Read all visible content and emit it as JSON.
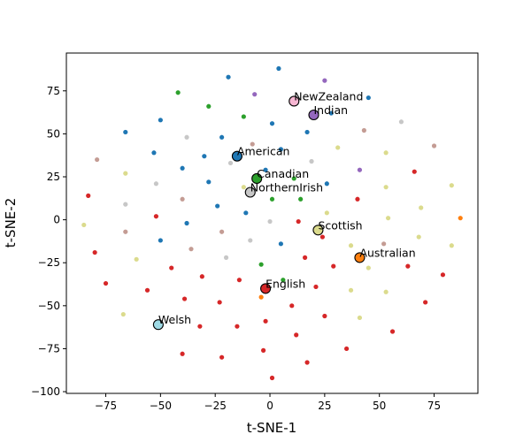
{
  "chart_data": {
    "type": "scatter",
    "xlabel": "t-SNE-1",
    "ylabel": "t-SNE-2",
    "xlim": [
      -93,
      95
    ],
    "ylim": [
      -101,
      97
    ],
    "xticks": [
      -75,
      -50,
      -25,
      0,
      25,
      50,
      75
    ],
    "yticks": [
      -100,
      -75,
      -50,
      -25,
      0,
      25,
      50,
      75
    ],
    "xtick_labels": [
      "−75",
      "−50",
      "−25",
      "0",
      "25",
      "50",
      "75"
    ],
    "ytick_labels": [
      "−100",
      "−75",
      "−50",
      "−25",
      "0",
      "25",
      "50",
      "75"
    ],
    "grid": false,
    "colors": {
      "blue": "#1f77b4",
      "orange": "#ff7f0e",
      "green": "#2ca02c",
      "red": "#d62728",
      "purple": "#9467bd",
      "brown": "#c49c94",
      "gray": "#c7c7c7",
      "olive": "#dbdb8d",
      "light_blue": "#9edae5",
      "pink": "#f7b6d2",
      "dark_orange": "#ff7f0e",
      "dark_purple": "#9467bd"
    },
    "points": [
      {
        "x": 4,
        "y": 88,
        "c": "blue"
      },
      {
        "x": -19,
        "y": 83,
        "c": "blue"
      },
      {
        "x": 25,
        "y": 81,
        "c": "purple"
      },
      {
        "x": -42,
        "y": 74,
        "c": "green"
      },
      {
        "x": -7,
        "y": 73,
        "c": "purple"
      },
      {
        "x": 45,
        "y": 71,
        "c": "blue"
      },
      {
        "x": -28,
        "y": 66,
        "c": "green"
      },
      {
        "x": -12,
        "y": 60,
        "c": "green"
      },
      {
        "x": 28,
        "y": 62,
        "c": "blue"
      },
      {
        "x": -50,
        "y": 58,
        "c": "blue"
      },
      {
        "x": 1,
        "y": 56,
        "c": "blue"
      },
      {
        "x": 60,
        "y": 57,
        "c": "gray"
      },
      {
        "x": -66,
        "y": 51,
        "c": "blue"
      },
      {
        "x": 17,
        "y": 51,
        "c": "blue"
      },
      {
        "x": 43,
        "y": 52,
        "c": "brown"
      },
      {
        "x": -38,
        "y": 48,
        "c": "gray"
      },
      {
        "x": -22,
        "y": 48,
        "c": "blue"
      },
      {
        "x": -8,
        "y": 44,
        "c": "brown"
      },
      {
        "x": 5,
        "y": 41,
        "c": "blue"
      },
      {
        "x": 31,
        "y": 42,
        "c": "olive"
      },
      {
        "x": 75,
        "y": 43,
        "c": "brown"
      },
      {
        "x": -53,
        "y": 39,
        "c": "blue"
      },
      {
        "x": 53,
        "y": 39,
        "c": "olive"
      },
      {
        "x": -79,
        "y": 35,
        "c": "brown"
      },
      {
        "x": -30,
        "y": 37,
        "c": "blue"
      },
      {
        "x": -18,
        "y": 33,
        "c": "gray"
      },
      {
        "x": 19,
        "y": 34,
        "c": "gray"
      },
      {
        "x": -40,
        "y": 30,
        "c": "blue"
      },
      {
        "x": -2,
        "y": 29,
        "c": "blue"
      },
      {
        "x": 41,
        "y": 29,
        "c": "purple"
      },
      {
        "x": -66,
        "y": 27,
        "c": "olive"
      },
      {
        "x": 66,
        "y": 28,
        "c": "red"
      },
      {
        "x": -28,
        "y": 22,
        "c": "blue"
      },
      {
        "x": 11,
        "y": 24,
        "c": "green"
      },
      {
        "x": 26,
        "y": 21,
        "c": "blue"
      },
      {
        "x": -52,
        "y": 21,
        "c": "gray"
      },
      {
        "x": 53,
        "y": 19,
        "c": "olive"
      },
      {
        "x": 83,
        "y": 20,
        "c": "olive"
      },
      {
        "x": -12,
        "y": 19,
        "c": "olive"
      },
      {
        "x": -83,
        "y": 14,
        "c": "red"
      },
      {
        "x": -40,
        "y": 12,
        "c": "brown"
      },
      {
        "x": 1,
        "y": 12,
        "c": "green"
      },
      {
        "x": 14,
        "y": 12,
        "c": "green"
      },
      {
        "x": 40,
        "y": 12,
        "c": "red"
      },
      {
        "x": -66,
        "y": 9,
        "c": "gray"
      },
      {
        "x": -24,
        "y": 8,
        "c": "blue"
      },
      {
        "x": 69,
        "y": 7,
        "c": "olive"
      },
      {
        "x": -52,
        "y": 2,
        "c": "red"
      },
      {
        "x": -11,
        "y": 4,
        "c": "blue"
      },
      {
        "x": 26,
        "y": 4,
        "c": "olive"
      },
      {
        "x": 87,
        "y": 1,
        "c": "orange"
      },
      {
        "x": -38,
        "y": -2,
        "c": "blue"
      },
      {
        "x": 0,
        "y": -1,
        "c": "gray"
      },
      {
        "x": 13,
        "y": -1,
        "c": "red"
      },
      {
        "x": 54,
        "y": 1,
        "c": "olive"
      },
      {
        "x": -85,
        "y": -3,
        "c": "olive"
      },
      {
        "x": -66,
        "y": -7,
        "c": "brown"
      },
      {
        "x": -22,
        "y": -7,
        "c": "brown"
      },
      {
        "x": 24,
        "y": -10,
        "c": "red"
      },
      {
        "x": 68,
        "y": -10,
        "c": "olive"
      },
      {
        "x": -50,
        "y": -12,
        "c": "blue"
      },
      {
        "x": -9,
        "y": -12,
        "c": "gray"
      },
      {
        "x": 5,
        "y": -14,
        "c": "blue"
      },
      {
        "x": 52,
        "y": -14,
        "c": "brown"
      },
      {
        "x": -36,
        "y": -17,
        "c": "brown"
      },
      {
        "x": 37,
        "y": -15,
        "c": "olive"
      },
      {
        "x": 83,
        "y": -15,
        "c": "olive"
      },
      {
        "x": -80,
        "y": -19,
        "c": "red"
      },
      {
        "x": -20,
        "y": -22,
        "c": "gray"
      },
      {
        "x": 16,
        "y": -22,
        "c": "red"
      },
      {
        "x": -61,
        "y": -23,
        "c": "olive"
      },
      {
        "x": -4,
        "y": -26,
        "c": "green"
      },
      {
        "x": 29,
        "y": -27,
        "c": "red"
      },
      {
        "x": 63,
        "y": -27,
        "c": "red"
      },
      {
        "x": -45,
        "y": -28,
        "c": "red"
      },
      {
        "x": 45,
        "y": -28,
        "c": "olive"
      },
      {
        "x": 79,
        "y": -32,
        "c": "red"
      },
      {
        "x": -31,
        "y": -33,
        "c": "red"
      },
      {
        "x": -14,
        "y": -35,
        "c": "red"
      },
      {
        "x": 6,
        "y": -35,
        "c": "green"
      },
      {
        "x": -75,
        "y": -37,
        "c": "red"
      },
      {
        "x": 21,
        "y": -39,
        "c": "red"
      },
      {
        "x": -56,
        "y": -41,
        "c": "red"
      },
      {
        "x": 37,
        "y": -41,
        "c": "olive"
      },
      {
        "x": 53,
        "y": -42,
        "c": "olive"
      },
      {
        "x": -4,
        "y": -45,
        "c": "orange"
      },
      {
        "x": -39,
        "y": -46,
        "c": "red"
      },
      {
        "x": -23,
        "y": -48,
        "c": "red"
      },
      {
        "x": 71,
        "y": -48,
        "c": "red"
      },
      {
        "x": 10,
        "y": -50,
        "c": "red"
      },
      {
        "x": -67,
        "y": -55,
        "c": "olive"
      },
      {
        "x": 25,
        "y": -56,
        "c": "red"
      },
      {
        "x": 41,
        "y": -57,
        "c": "olive"
      },
      {
        "x": -2,
        "y": -59,
        "c": "red"
      },
      {
        "x": -32,
        "y": -62,
        "c": "red"
      },
      {
        "x": -15,
        "y": -62,
        "c": "red"
      },
      {
        "x": 56,
        "y": -65,
        "c": "red"
      },
      {
        "x": 12,
        "y": -67,
        "c": "red"
      },
      {
        "x": 35,
        "y": -75,
        "c": "red"
      },
      {
        "x": -3,
        "y": -76,
        "c": "red"
      },
      {
        "x": -40,
        "y": -78,
        "c": "red"
      },
      {
        "x": -22,
        "y": -80,
        "c": "red"
      },
      {
        "x": 17,
        "y": -83,
        "c": "red"
      },
      {
        "x": 1,
        "y": -92,
        "c": "red"
      }
    ],
    "highlighted": [
      {
        "label": "NewZealand",
        "x": 11,
        "y": 69,
        "c": "pink"
      },
      {
        "label": "Indian",
        "x": 20,
        "y": 61,
        "c": "dark_purple"
      },
      {
        "label": "American",
        "x": -15,
        "y": 37,
        "c": "blue"
      },
      {
        "label": "Canadian",
        "x": -6,
        "y": 24,
        "c": "green"
      },
      {
        "label": "NorthernIrish",
        "x": -9,
        "y": 16,
        "c": "gray"
      },
      {
        "label": "Scottish",
        "x": 22,
        "y": -6,
        "c": "olive"
      },
      {
        "label": "Australian",
        "x": 41,
        "y": -22,
        "c": "dark_orange"
      },
      {
        "label": "English",
        "x": -2,
        "y": -40,
        "c": "red"
      },
      {
        "label": "Welsh",
        "x": -51,
        "y": -61,
        "c": "light_blue"
      }
    ]
  }
}
